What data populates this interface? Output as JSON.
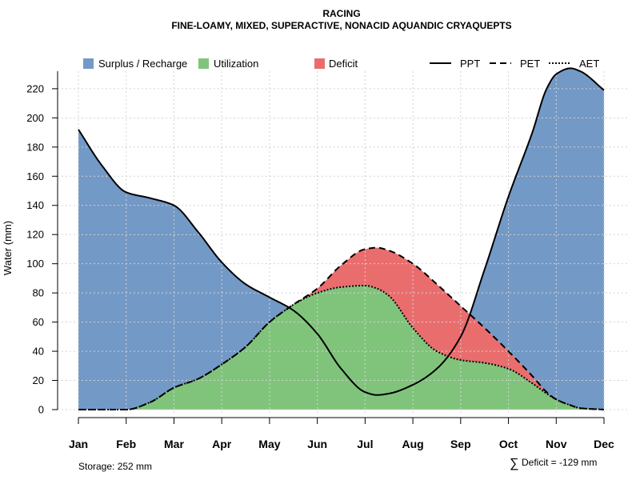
{
  "chart_data": {
    "type": "area",
    "title": "RACING",
    "subtitle": "FINE-LOAMY, MIXED, SUPERACTIVE, NONACID AQUANDIC CRYAQUEPTS",
    "ylabel": "Water (mm)",
    "xlabel": "",
    "ylim": [
      0,
      232
    ],
    "yticks": [
      0,
      20,
      40,
      60,
      80,
      100,
      120,
      140,
      160,
      180,
      200,
      220
    ],
    "grid": true,
    "categories": [
      "Jan",
      "Feb",
      "Mar",
      "Apr",
      "May",
      "Jun",
      "Jul",
      "Aug",
      "Sep",
      "Oct",
      "Nov",
      "Dec"
    ],
    "x": [
      1,
      1.5,
      2,
      2.5,
      3,
      3.5,
      4,
      4.5,
      5,
      5.5,
      6,
      6.5,
      7,
      7.25,
      7.5,
      8,
      8.5,
      9,
      9.5,
      10,
      10.5,
      10.8,
      11,
      11.3,
      11.5,
      12
    ],
    "series": [
      {
        "name": "PPT",
        "style": "solid",
        "values": [
          192,
          167,
          149,
          145,
          140,
          122,
          101,
          86,
          77,
          68,
          52,
          28,
          12,
          10,
          11,
          17,
          28,
          50,
          96,
          146,
          190,
          220,
          230,
          234,
          232,
          219
        ]
      },
      {
        "name": "PET",
        "style": "dashed",
        "values": [
          0,
          0,
          0,
          5,
          15,
          21,
          31,
          43,
          60,
          72,
          83,
          99,
          110,
          111,
          109,
          100,
          86,
          71,
          56,
          40,
          23,
          12,
          7,
          3,
          1,
          0
        ]
      },
      {
        "name": "AET",
        "style": "dotted",
        "values": [
          0,
          0,
          0,
          5,
          15,
          21,
          31,
          43,
          60,
          72,
          80,
          84,
          85,
          83,
          78,
          56,
          40,
          34,
          32,
          28,
          18,
          11,
          7,
          3,
          1,
          0
        ]
      }
    ],
    "legend": [
      {
        "label": "Surplus / Recharge",
        "kind": "fill",
        "color": "#7399c6"
      },
      {
        "label": "Utilization",
        "kind": "fill",
        "color": "#80c47c"
      },
      {
        "label": "Deficit",
        "kind": "fill",
        "color": "#ea6d6e"
      },
      {
        "label": "PPT",
        "kind": "line",
        "style": "solid"
      },
      {
        "label": "PET",
        "kind": "line",
        "style": "dashed"
      },
      {
        "label": "AET",
        "kind": "line",
        "style": "dotted"
      }
    ],
    "legend_position": "top",
    "annotations": {
      "storage": "Storage: 252 mm",
      "deficit_symbol": "∑",
      "deficit": "Deficit = -129 mm"
    },
    "colors": {
      "surplus": "#7399c6",
      "utilization": "#80c47c",
      "deficit": "#ea6d6e",
      "line": "#000000",
      "grid": "#d3d3d3"
    }
  }
}
